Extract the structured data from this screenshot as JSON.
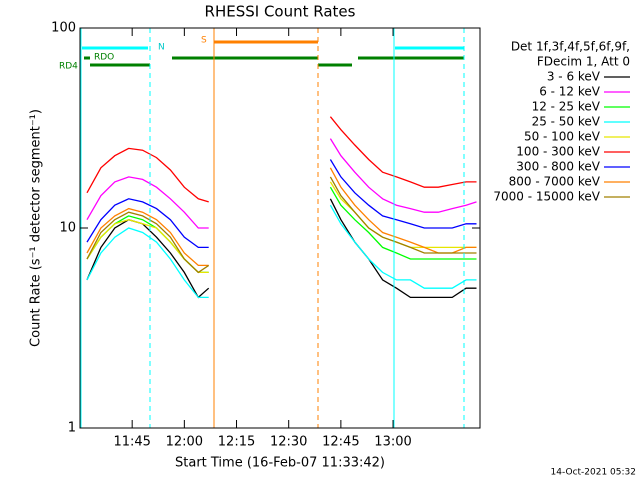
{
  "chart_data": {
    "type": "line",
    "title": "RHESSI Count Rates",
    "x_label": "Start Time (16-Feb-07 11:33:42)",
    "y_label": "Count Rate (s⁻¹ detector segment⁻¹)",
    "legend_header": [
      "Det 1f,3f,4f,5f,6f,9f,",
      "FDecim 1, Att 0"
    ],
    "annotations": [
      "N",
      "S",
      "RDO",
      "RD4"
    ],
    "footer": "14-Oct-2021 05:32",
    "log_y": true,
    "xlim": [
      690,
      805
    ],
    "xticks": [
      {
        "value": 705,
        "label": "11:45"
      },
      {
        "value": 720,
        "label": "12:00"
      },
      {
        "value": 735,
        "label": "12:15"
      },
      {
        "value": 750,
        "label": "12:30"
      },
      {
        "value": 765,
        "label": "12:45"
      },
      {
        "value": 780,
        "label": "13:00"
      }
    ],
    "ylim": [
      1,
      100
    ],
    "yticks": [
      1,
      10,
      100
    ],
    "x": [
      692,
      696,
      700,
      704,
      708,
      712,
      716,
      720,
      724,
      727,
      745,
      762,
      765,
      769,
      773,
      777,
      781,
      785,
      789,
      793,
      797,
      801,
      804
    ],
    "series": [
      {
        "name": "3 - 6 keV",
        "color": "#000000",
        "values": [
          5.5,
          8,
          10,
          11,
          10.5,
          9,
          7.5,
          6,
          4.5,
          5,
          null,
          14,
          11,
          8.5,
          7,
          5.5,
          5,
          4.5,
          4.5,
          4.5,
          4.5,
          5,
          5
        ]
      },
      {
        "name": "6 - 12 keV",
        "color": "#ff00ff",
        "values": [
          11,
          14.5,
          17,
          18,
          17.5,
          16,
          14,
          12,
          10,
          10,
          null,
          28,
          23,
          19,
          16,
          14,
          13,
          12.5,
          12,
          12,
          12.5,
          13,
          13.5
        ]
      },
      {
        "name": "12 - 25 keV",
        "color": "#00ff00",
        "values": [
          7,
          9,
          10.5,
          11.5,
          11,
          10,
          8.5,
          7,
          6,
          6,
          null,
          16,
          13,
          11,
          9.5,
          8,
          7.5,
          7,
          7,
          7,
          7,
          7,
          7
        ]
      },
      {
        "name": "25 - 50 keV",
        "color": "#00ffff",
        "values": [
          5.5,
          7.5,
          9,
          10,
          9.5,
          8.5,
          7,
          5.5,
          4.5,
          4.5,
          null,
          13,
          10.5,
          8.5,
          7,
          6,
          5.5,
          5.5,
          5,
          5,
          5,
          5.5,
          5.5
        ]
      },
      {
        "name": "50 - 100 keV",
        "color": "#e6e600",
        "values": [
          7,
          9,
          10.5,
          11,
          10.5,
          10,
          8.5,
          7,
          6,
          6,
          null,
          17,
          14,
          12,
          10,
          9,
          8.5,
          8,
          8,
          8,
          8,
          8,
          8
        ]
      },
      {
        "name": "100 - 300 keV",
        "color": "#ff0000",
        "values": [
          15,
          20,
          23,
          25,
          24.5,
          22.5,
          19.5,
          16,
          14,
          13.5,
          null,
          36,
          31,
          26,
          22,
          19,
          18,
          17,
          16,
          16,
          16.5,
          17,
          17
        ]
      },
      {
        "name": "300 - 800 keV",
        "color": "#0000ff",
        "values": [
          8.5,
          11,
          13,
          14,
          13.5,
          12.5,
          11,
          9,
          8,
          8,
          null,
          22,
          18,
          15,
          13,
          11.5,
          11,
          10.5,
          10,
          10,
          10,
          10.5,
          10.5
        ]
      },
      {
        "name": "800 - 7000 keV",
        "color": "#ff8000",
        "values": [
          7.5,
          10,
          11.5,
          12.5,
          12,
          11,
          9.5,
          7.5,
          6.5,
          6.5,
          null,
          20,
          16,
          13,
          11,
          9.5,
          9,
          8.5,
          8,
          7.5,
          7.5,
          8,
          8
        ]
      },
      {
        "name": "7000 - 15000 keV",
        "color": "#a08000",
        "values": [
          7,
          9.5,
          11,
          12,
          11.5,
          10.5,
          9,
          7,
          6,
          6.5,
          null,
          18,
          14.5,
          12,
          10,
          9,
          8.5,
          8,
          7.5,
          7.5,
          7.5,
          7.5,
          7.5
        ]
      }
    ]
  }
}
